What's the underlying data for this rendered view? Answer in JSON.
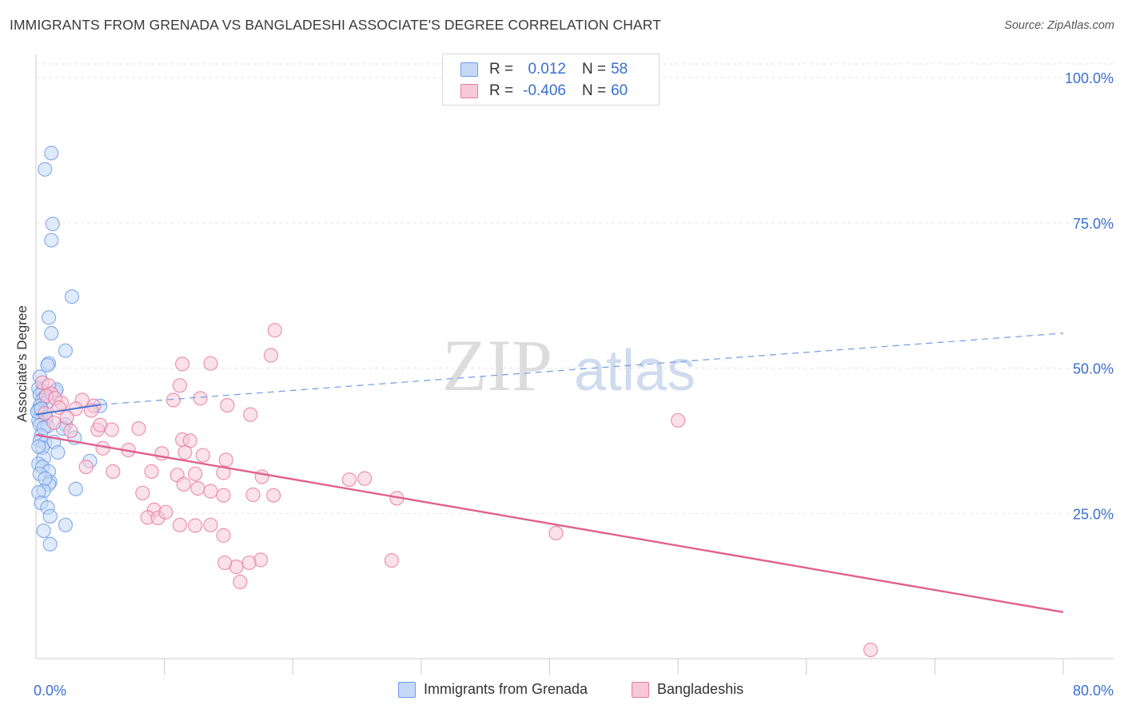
{
  "title": "IMMIGRANTS FROM GRENADA VS BANGLADESHI ASSOCIATE'S DEGREE CORRELATION CHART",
  "source": "Source: ZipAtlas.com",
  "watermark": {
    "zip": "ZIP",
    "atlas": "atlas"
  },
  "legend": {
    "rows": [
      {
        "r_label": "R =",
        "r_value": "0.012",
        "n_label": "N =",
        "n_value": "58"
      },
      {
        "r_label": "R =",
        "r_value": "-0.406",
        "n_label": "N =",
        "n_value": "60"
      }
    ]
  },
  "chart_data": {
    "type": "scatter",
    "xlabel": "",
    "ylabel": "Associate's Degree",
    "xlim": [
      0,
      80
    ],
    "ylim": [
      0,
      100
    ],
    "x_tick_labels": [
      {
        "value": 0,
        "label": "0.0%"
      },
      {
        "value": 80,
        "label": "80.0%"
      }
    ],
    "y_tick_labels": [
      {
        "value": 25,
        "label": "25.0%"
      },
      {
        "value": 50,
        "label": "50.0%"
      },
      {
        "value": 75,
        "label": "75.0%"
      },
      {
        "value": 100,
        "label": "100.0%"
      }
    ],
    "grid": true,
    "legend_position": "bottom",
    "series": [
      {
        "name": "Immigrants from Grenada",
        "color": "#6f9be6",
        "fill": "#c5d8f6",
        "R": 0.012,
        "N": 58,
        "trendline": {
          "x": [
            0,
            5
          ],
          "y": [
            42.0,
            43.7
          ],
          "extended_x": [
            5,
            80
          ],
          "extended_y": [
            43.7,
            56.0
          ],
          "style": "solid-then-dashed"
        },
        "points": [
          [
            1.2,
            87.0
          ],
          [
            0.7,
            84.2
          ],
          [
            1.3,
            74.8
          ],
          [
            1.2,
            72.0
          ],
          [
            2.8,
            62.3
          ],
          [
            1.0,
            58.7
          ],
          [
            1.2,
            56.0
          ],
          [
            2.3,
            53.0
          ],
          [
            1.0,
            50.8
          ],
          [
            0.9,
            50.5
          ],
          [
            0.3,
            48.5
          ],
          [
            0.2,
            46.5
          ],
          [
            0.5,
            46.0
          ],
          [
            0.3,
            45.4
          ],
          [
            0.7,
            45.0
          ],
          [
            1.5,
            46.0
          ],
          [
            1.6,
            46.3
          ],
          [
            0.5,
            44.5
          ],
          [
            0.9,
            44.2
          ],
          [
            0.3,
            43.5
          ],
          [
            0.2,
            42.8
          ],
          [
            5.0,
            43.5
          ],
          [
            0.4,
            42.0
          ],
          [
            0.8,
            41.5
          ],
          [
            0.2,
            41.0
          ],
          [
            0.3,
            40.2
          ],
          [
            0.9,
            40.0
          ],
          [
            0.6,
            39.7
          ],
          [
            2.3,
            40.3
          ],
          [
            2.1,
            39.6
          ],
          [
            0.4,
            38.4
          ],
          [
            3.0,
            38.0
          ],
          [
            0.3,
            37.5
          ],
          [
            0.7,
            37.1
          ],
          [
            1.4,
            37.3
          ],
          [
            0.5,
            36.3
          ],
          [
            1.7,
            35.5
          ],
          [
            0.6,
            34.5
          ],
          [
            4.2,
            34.0
          ],
          [
            0.2,
            33.5
          ],
          [
            0.5,
            33.0
          ],
          [
            1.0,
            32.2
          ],
          [
            0.3,
            31.8
          ],
          [
            1.1,
            30.4
          ],
          [
            1.0,
            30.0
          ],
          [
            3.1,
            29.2
          ],
          [
            0.6,
            28.9
          ],
          [
            0.2,
            28.6
          ],
          [
            0.4,
            26.8
          ],
          [
            0.9,
            26.0
          ],
          [
            1.1,
            24.5
          ],
          [
            2.3,
            23.0
          ],
          [
            0.6,
            22.0
          ],
          [
            1.1,
            19.7
          ],
          [
            0.1,
            42.5
          ],
          [
            0.4,
            43.0
          ],
          [
            0.2,
            36.5
          ],
          [
            0.7,
            31.0
          ]
        ]
      },
      {
        "name": "Bangladeshis",
        "color": "#e67ba1",
        "fill": "#f7c8d8",
        "R": -0.406,
        "N": 60,
        "trendline": {
          "x": [
            0,
            80
          ],
          "y": [
            38.5,
            8.0
          ],
          "style": "solid"
        },
        "points": [
          [
            0.5,
            47.5
          ],
          [
            1.0,
            47.0
          ],
          [
            3.6,
            44.5
          ],
          [
            1.2,
            45.6
          ],
          [
            2.0,
            44.0
          ],
          [
            0.8,
            45.2
          ],
          [
            1.5,
            44.8
          ],
          [
            4.5,
            43.5
          ],
          [
            1.8,
            43.2
          ],
          [
            3.1,
            43.0
          ],
          [
            4.3,
            42.7
          ],
          [
            2.4,
            41.5
          ],
          [
            0.7,
            42.2
          ],
          [
            1.4,
            40.6
          ],
          [
            4.8,
            39.4
          ],
          [
            5.0,
            40.2
          ],
          [
            2.7,
            39.2
          ],
          [
            5.9,
            39.4
          ],
          [
            8.0,
            39.6
          ],
          [
            11.4,
            37.7
          ],
          [
            12.0,
            37.5
          ],
          [
            5.2,
            36.2
          ],
          [
            7.2,
            35.9
          ],
          [
            9.8,
            35.3
          ],
          [
            11.6,
            35.5
          ],
          [
            13.0,
            35.0
          ],
          [
            14.8,
            34.2
          ],
          [
            3.9,
            33.0
          ],
          [
            6.0,
            32.2
          ],
          [
            9.0,
            32.2
          ],
          [
            11.0,
            31.6
          ],
          [
            12.4,
            31.8
          ],
          [
            14.6,
            32.0
          ],
          [
            17.6,
            31.3
          ],
          [
            11.5,
            30.0
          ],
          [
            12.6,
            29.3
          ],
          [
            13.6,
            28.8
          ],
          [
            14.6,
            28.1
          ],
          [
            16.9,
            28.2
          ],
          [
            8.3,
            28.5
          ],
          [
            18.5,
            28.1
          ],
          [
            9.2,
            25.6
          ],
          [
            8.7,
            24.3
          ],
          [
            9.5,
            24.2
          ],
          [
            10.1,
            25.2
          ],
          [
            11.2,
            23.0
          ],
          [
            12.4,
            22.9
          ],
          [
            13.6,
            23.0
          ],
          [
            14.6,
            21.2
          ],
          [
            17.5,
            17.0
          ],
          [
            16.6,
            16.5
          ],
          [
            15.6,
            15.8
          ],
          [
            14.7,
            16.5
          ],
          [
            15.9,
            13.2
          ],
          [
            27.7,
            16.9
          ],
          [
            24.4,
            30.8
          ],
          [
            25.6,
            31.0
          ],
          [
            28.1,
            27.6
          ],
          [
            50.0,
            41.0
          ],
          [
            65.0,
            1.5
          ]
        ]
      }
    ],
    "extra_points_note": "",
    "extra_points": {
      "Bangladeshis": [
        [
          18.6,
          56.5
        ],
        [
          11.4,
          50.7
        ],
        [
          13.6,
          50.8
        ],
        [
          18.3,
          52.2
        ],
        [
          11.2,
          47.0
        ],
        [
          10.7,
          44.5
        ],
        [
          12.8,
          44.8
        ],
        [
          16.7,
          42.0
        ],
        [
          14.9,
          43.6
        ],
        [
          40.5,
          21.6
        ]
      ]
    }
  },
  "bottom_legend": {
    "items": [
      {
        "label": "Immigrants from Grenada"
      },
      {
        "label": "Bangladeshis"
      }
    ]
  }
}
